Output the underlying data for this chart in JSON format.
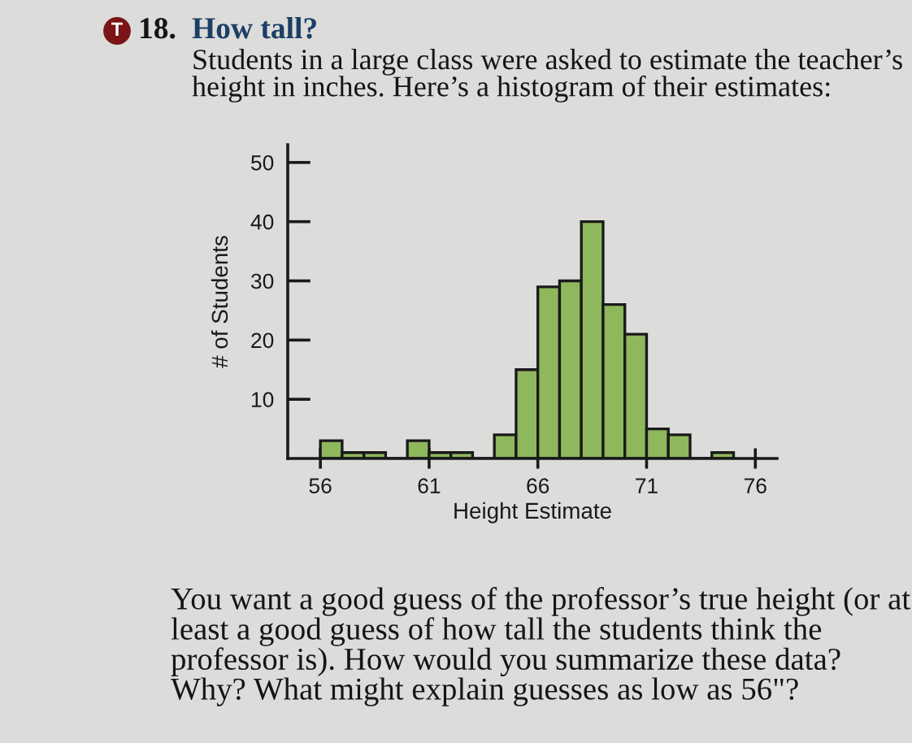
{
  "chart_data": {
    "type": "histogram",
    "title": "18. How tall?",
    "subtitle": "Students in a large class were asked to estimate the teacher’s height in inches. Here’s a histogram of their estimates:",
    "xlabel": "Height Estimate",
    "ylabel": "# of Students",
    "bins": [
      56,
      57,
      58,
      59,
      60,
      61,
      62,
      63,
      64,
      65,
      66,
      67,
      68,
      69,
      70,
      71,
      72,
      73,
      74,
      75
    ],
    "values": [
      3,
      1,
      1,
      0,
      3,
      1,
      1,
      0,
      4,
      15,
      29,
      30,
      40,
      26,
      21,
      5,
      4,
      0,
      1
    ],
    "color": "#8fb75c",
    "xlim": [
      54.5,
      77
    ],
    "xticks": [
      56,
      61,
      66,
      71,
      76
    ],
    "ylim": [
      0,
      53
    ],
    "yticks": [
      10,
      20,
      30,
      40,
      50
    ],
    "grid": false,
    "annotations": [
      "T",
      "You want a good guess of the professor’s true height (or at least a good guess of how tall the students think the professor is). How would you summarize these data? Why? What might explain guesses as low as 56\"?"
    ]
  }
}
